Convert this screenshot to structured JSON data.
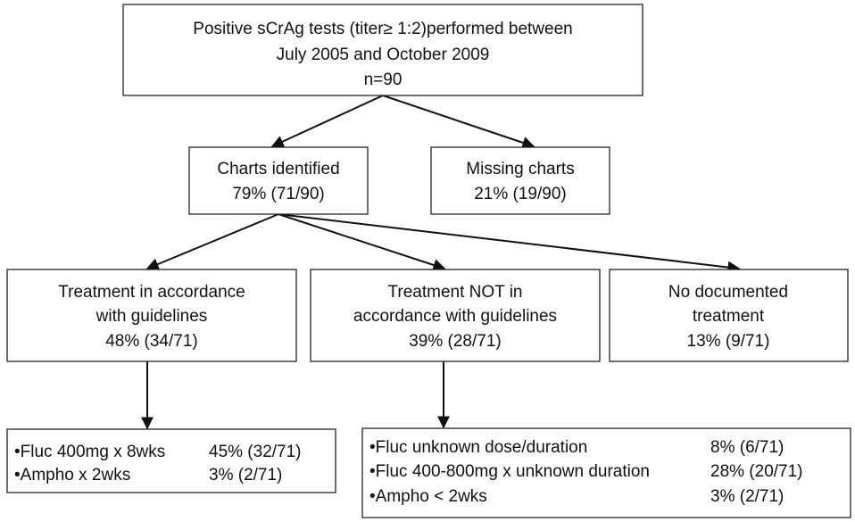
{
  "nodes": [
    {
      "lines": [
        "Positive sCrAg tests (titer≥ 1:2)performed between",
        "July 2005 and October 2009",
        "n=90"
      ]
    },
    {
      "lines": [
        "Charts identified",
        "79% (71/90)"
      ]
    },
    {
      "lines": [
        "Missing charts",
        "21% (19/90)"
      ]
    },
    {
      "lines": [
        "Treatment in accordance",
        "with guidelines",
        "48% (34/71)"
      ]
    },
    {
      "lines": [
        "Treatment NOT in",
        "accordance with guidelines",
        "39% (28/71)"
      ]
    },
    {
      "lines": [
        "No documented",
        "treatment",
        "13% (9/71)"
      ]
    }
  ],
  "lists": [
    {
      "rows": [
        [
          "•Fluc 400mg x 8wks",
          "45% (32/71)"
        ],
        [
          "•Ampho x 2wks",
          "3% (2/71)"
        ]
      ]
    },
    {
      "rows": [
        [
          "•Fluc unknown dose/duration",
          "8% (6/71)"
        ],
        [
          "•Fluc 400-800mg x unknown duration",
          "28% (20/71)"
        ],
        [
          "•Ampho < 2wks",
          "3% (2/71)"
        ]
      ]
    }
  ]
}
